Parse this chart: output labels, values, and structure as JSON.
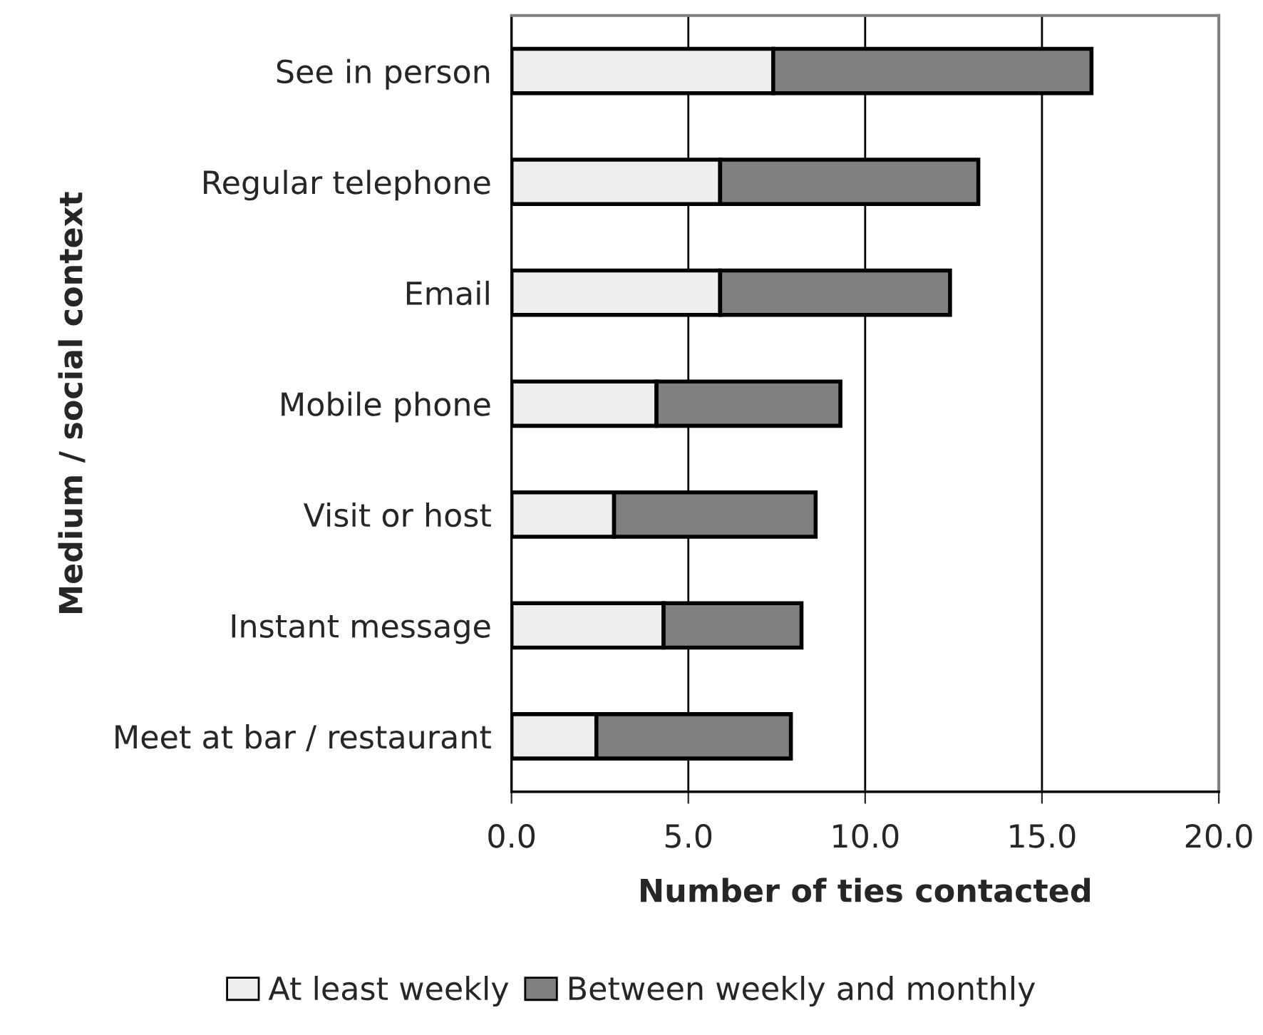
{
  "chart_data": {
    "type": "bar",
    "orientation": "horizontal",
    "stacked": true,
    "xlabel": "Number of ties contacted",
    "ylabel": "Medium / social context",
    "categories": [
      "See in person",
      "Regular telephone",
      "Email",
      "Mobile phone",
      "Visit or host",
      "Instant message",
      "Meet at bar / restaurant"
    ],
    "series": [
      {
        "name": "At least weekly",
        "color": "#eeeeee",
        "values": [
          7.4,
          5.9,
          5.9,
          4.1,
          2.9,
          4.3,
          2.4
        ]
      },
      {
        "name": "Between weekly and monthly",
        "color": "#808080",
        "values": [
          9.0,
          7.3,
          6.5,
          5.2,
          5.7,
          3.9,
          5.5
        ]
      }
    ],
    "xlim": [
      0,
      20
    ],
    "xticks": [
      {
        "value": 0,
        "label": "0.0"
      },
      {
        "value": 5,
        "label": "5.0"
      },
      {
        "value": 10,
        "label": "10.0"
      },
      {
        "value": 15,
        "label": "15.0"
      },
      {
        "value": 20,
        "label": "20.0"
      }
    ],
    "grid": "x",
    "legend": "bottom"
  }
}
